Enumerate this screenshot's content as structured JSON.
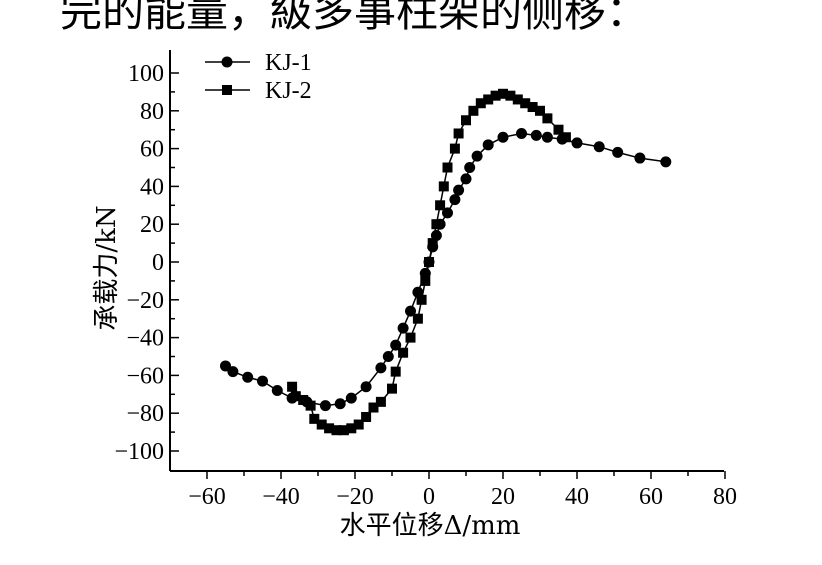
{
  "header": {
    "caption_fragment": "完的能量，級多事柱架的侧移："
  },
  "chart_data": {
    "type": "line",
    "title": "",
    "xlabel": "水平位移Δ/mm",
    "ylabel": "承载力/kN",
    "xlim": [
      -70,
      80
    ],
    "ylim": [
      -110,
      105
    ],
    "x_ticks": [
      "-60",
      "-40",
      "-20",
      "0",
      "20",
      "40",
      "60",
      "80"
    ],
    "y_ticks": [
      "100",
      "80",
      "60",
      "40",
      "20",
      "0",
      "-20",
      "-40",
      "-60",
      "-80",
      "-100"
    ],
    "legend_position": "top-left",
    "grid": false,
    "series": [
      {
        "name": "KJ-1",
        "marker": "circle",
        "color": "#000000",
        "points": [
          [
            -55,
            -55
          ],
          [
            -53,
            -58
          ],
          [
            -49,
            -61
          ],
          [
            -45,
            -63
          ],
          [
            -41,
            -68
          ],
          [
            -37,
            -72
          ],
          [
            -33,
            -74
          ],
          [
            -28,
            -76
          ],
          [
            -24,
            -75
          ],
          [
            -21,
            -72
          ],
          [
            -17,
            -66
          ],
          [
            -13,
            -56
          ],
          [
            -11,
            -50
          ],
          [
            -9,
            -44
          ],
          [
            -7,
            -35
          ],
          [
            -5,
            -26
          ],
          [
            -3,
            -16
          ],
          [
            -1,
            -6
          ],
          [
            0,
            0
          ],
          [
            1,
            8
          ],
          [
            2,
            14
          ],
          [
            3,
            20
          ],
          [
            5,
            26
          ],
          [
            7,
            33
          ],
          [
            8,
            38
          ],
          [
            10,
            44
          ],
          [
            11,
            50
          ],
          [
            13,
            56
          ],
          [
            16,
            62
          ],
          [
            20,
            66
          ],
          [
            25,
            68
          ],
          [
            29,
            67
          ],
          [
            32,
            66
          ],
          [
            36,
            65
          ],
          [
            40,
            63
          ],
          [
            46,
            61
          ],
          [
            51,
            58
          ],
          [
            57,
            55
          ],
          [
            64,
            53
          ]
        ]
      },
      {
        "name": "KJ-2",
        "marker": "square",
        "color": "#000000",
        "points": [
          [
            -37,
            -66
          ],
          [
            -36,
            -71
          ],
          [
            -34,
            -73
          ],
          [
            -32,
            -76
          ],
          [
            -31,
            -83
          ],
          [
            -29,
            -86
          ],
          [
            -27,
            -88
          ],
          [
            -25,
            -89
          ],
          [
            -23,
            -89
          ],
          [
            -21,
            -88
          ],
          [
            -19,
            -86
          ],
          [
            -17,
            -82
          ],
          [
            -15,
            -77
          ],
          [
            -13,
            -74
          ],
          [
            -10,
            -67
          ],
          [
            -9,
            -58
          ],
          [
            -7,
            -48
          ],
          [
            -5,
            -40
          ],
          [
            -3,
            -30
          ],
          [
            -2,
            -20
          ],
          [
            -1,
            -10
          ],
          [
            0,
            0
          ],
          [
            1,
            10
          ],
          [
            2,
            20
          ],
          [
            3,
            30
          ],
          [
            4,
            40
          ],
          [
            5,
            50
          ],
          [
            7,
            60
          ],
          [
            8,
            68
          ],
          [
            10,
            75
          ],
          [
            12,
            80
          ],
          [
            14,
            84
          ],
          [
            16,
            86
          ],
          [
            18,
            88
          ],
          [
            20,
            89
          ],
          [
            22,
            88
          ],
          [
            24,
            86
          ],
          [
            26,
            84
          ],
          [
            28,
            82
          ],
          [
            30,
            80
          ],
          [
            32,
            76
          ],
          [
            35,
            70
          ],
          [
            37,
            66
          ]
        ]
      }
    ]
  }
}
